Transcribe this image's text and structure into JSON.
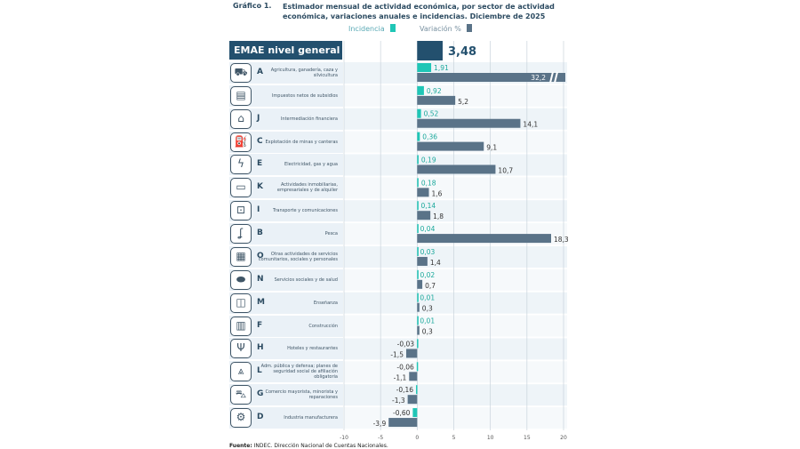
{
  "header": {
    "figure_number": "Gráfico 1.",
    "title": "Estimador mensual de actividad económica, por sector de actividad económica, variaciones anuales e incidencias. Diciembre de 2025"
  },
  "colors": {
    "incidencia": "#1fc6b6",
    "variacion": "#5a7388",
    "general": "#23506e"
  },
  "footer": {
    "source_label": "Fuente:",
    "source_text": " INDEC. Dirección Nacional de Cuentas Nacionales."
  },
  "chart_data": {
    "type": "bar",
    "orientation": "horizontal",
    "legend": {
      "position": "top",
      "items": [
        "Incidencia",
        "Variación %"
      ]
    },
    "general": {
      "label": "EMAE nivel general",
      "value": 3.48,
      "value_label": "3,48"
    },
    "xlim": [
      -10,
      20
    ],
    "xticks": [
      -10,
      -5,
      0,
      5,
      10,
      15,
      20
    ],
    "grid": true,
    "categories": [
      {
        "code": "A",
        "label": "Agricultura, ganadería, caza y silvicultura",
        "icon": "tractor-icon",
        "incidencia": 1.91,
        "variacion": 32.2,
        "truncated": true
      },
      {
        "code": "",
        "label": "Impuestos netos de subsidios",
        "icon": "tax-document-icon",
        "incidencia": 0.92,
        "variacion": 5.2
      },
      {
        "code": "J",
        "label": "Intermediación financiera",
        "icon": "bank-icon",
        "incidencia": 0.52,
        "variacion": 14.1
      },
      {
        "code": "C",
        "label": "Explotación de minas y canteras",
        "icon": "oil-pump-icon",
        "incidencia": 0.36,
        "variacion": 9.1
      },
      {
        "code": "E",
        "label": "Electricidad, gas y agua",
        "icon": "utilities-icon",
        "incidencia": 0.19,
        "variacion": 10.7
      },
      {
        "code": "K",
        "label": "Actividades inmobiliarias, empresariales y de alquiler",
        "icon": "monitor-key-icon",
        "incidencia": 0.18,
        "variacion": 1.6
      },
      {
        "code": "I",
        "label": "Transporte y comunicaciones",
        "icon": "bus-icon",
        "incidencia": 0.14,
        "variacion": 1.8
      },
      {
        "code": "B",
        "label": "Pesca",
        "icon": "fishhook-icon",
        "incidencia": 0.04,
        "variacion": 18.3
      },
      {
        "code": "O",
        "label": "Otras actividades de servicios comunitarios, sociales y personales",
        "icon": "services-icon",
        "incidencia": 0.03,
        "variacion": 1.4
      },
      {
        "code": "N",
        "label": "Servicios sociales y de salud",
        "icon": "pill-icon",
        "incidencia": 0.02,
        "variacion": 0.7
      },
      {
        "code": "M",
        "label": "Enseñanza",
        "icon": "book-icon",
        "incidencia": 0.01,
        "variacion": 0.3
      },
      {
        "code": "F",
        "label": "Construcción",
        "icon": "bricks-icon",
        "incidencia": 0.01,
        "variacion": 0.3
      },
      {
        "code": "H",
        "label": "Hoteles y restaurantes",
        "icon": "cutlery-icon",
        "incidencia": -0.03,
        "variacion": -1.5
      },
      {
        "code": "L",
        "label": "Adm. pública y defensa; planes de seguridad social de afiliación obligatoria",
        "icon": "capitol-icon",
        "incidencia": -0.06,
        "variacion": -1.1
      },
      {
        "code": "G",
        "label": "Comercio mayorista, minorista y reparaciones",
        "icon": "cart-icon",
        "incidencia": -0.16,
        "variacion": -1.3
      },
      {
        "code": "D",
        "label": "Industria manufacturera",
        "icon": "gears-icon",
        "incidencia": -0.6,
        "variacion": -3.9
      }
    ]
  }
}
